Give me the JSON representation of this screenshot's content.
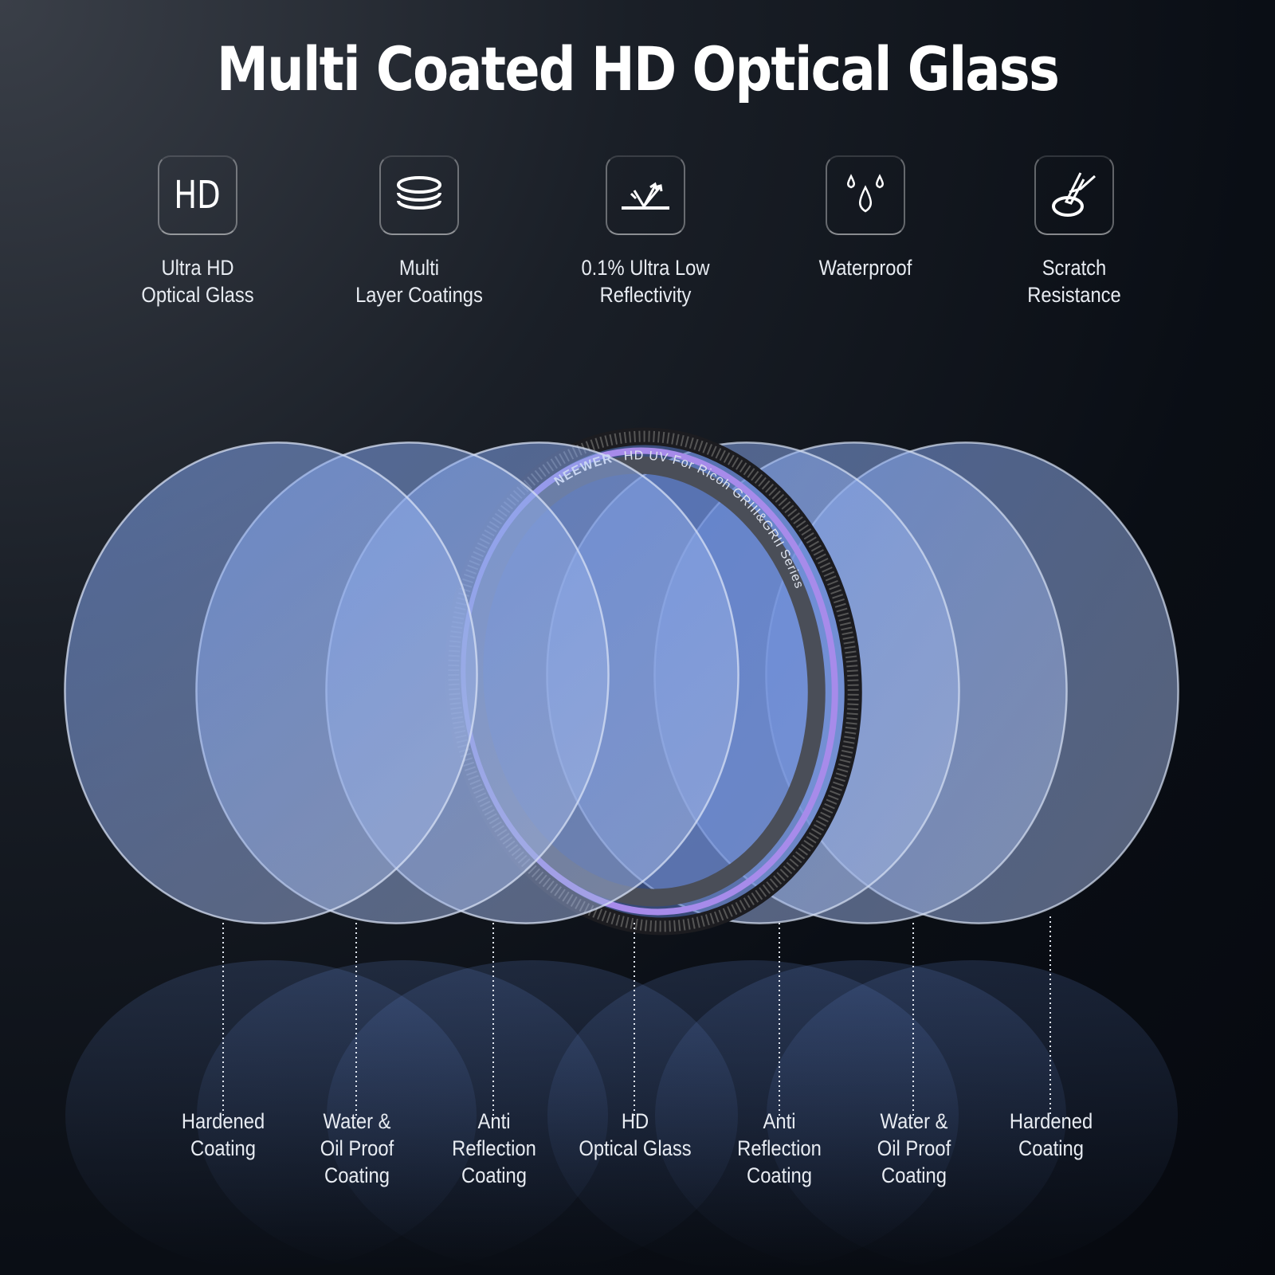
{
  "title": "Multi Coated HD Optical Glass",
  "features": [
    {
      "icon": "hd-icon",
      "icon_text": "HD",
      "label": "Ultra HD\nOptical Glass"
    },
    {
      "icon": "layers-icon",
      "label": "Multi\nLayer Coatings"
    },
    {
      "icon": "reflection-icon",
      "label": "0.1% Ultra Low\nReflectivity"
    },
    {
      "icon": "water-drops-icon",
      "label": "Waterproof"
    },
    {
      "icon": "scratch-icon",
      "label": "Scratch\nResistance"
    }
  ],
  "filter_ring": {
    "brand": "NEEWER",
    "text": "HD  UV For  Ricoh GRIII&GRII Series"
  },
  "layers": [
    {
      "label": "Hardened\nCoating"
    },
    {
      "label": "Water &\nOil Proof\nCoating"
    },
    {
      "label": "Anti\nReflection\nCoating"
    },
    {
      "label": "HD\nOptical Glass"
    },
    {
      "label": "Anti\nReflection\nCoating"
    },
    {
      "label": "Water &\nOil Proof\nCoating"
    },
    {
      "label": "Hardened\nCoating"
    }
  ],
  "colors": {
    "glass": "#6a90e0",
    "ring_accent": "#a78bea",
    "background": "#0a0e15"
  }
}
